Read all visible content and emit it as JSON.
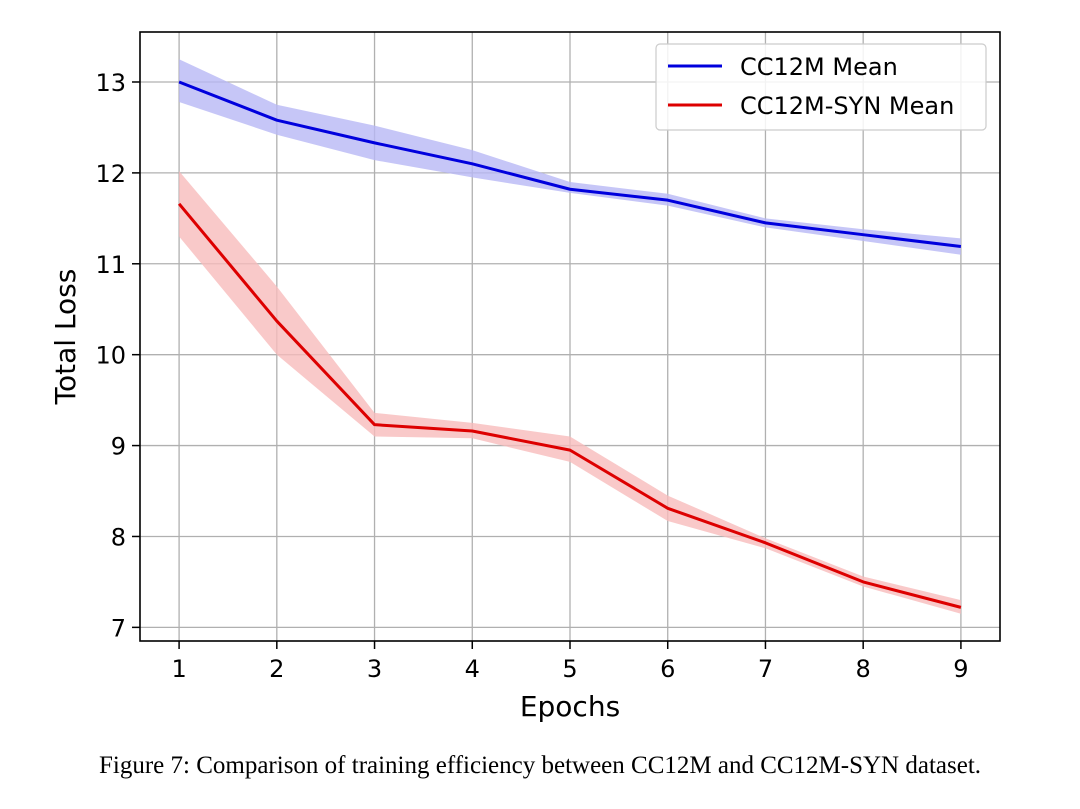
{
  "chart_data": {
    "type": "line",
    "title": "",
    "xlabel": "Epochs",
    "ylabel": "Total Loss",
    "x": [
      1,
      2,
      3,
      4,
      5,
      6,
      7,
      8,
      9
    ],
    "xlim": [
      0.6,
      9.4
    ],
    "ylim": [
      6.85,
      13.55
    ],
    "xticks": [
      1,
      2,
      3,
      4,
      5,
      6,
      7,
      8,
      9
    ],
    "yticks": [
      7,
      8,
      9,
      10,
      11,
      12,
      13
    ],
    "grid": true,
    "legend_position": "top-right",
    "series": [
      {
        "name": "CC12M Mean",
        "color": "#0000dd",
        "band_color": "#b8b8f5",
        "values": [
          13.0,
          12.58,
          12.33,
          12.1,
          11.82,
          11.7,
          11.45,
          11.32,
          11.19
        ],
        "upper": [
          13.25,
          12.75,
          12.52,
          12.25,
          11.9,
          11.77,
          11.5,
          11.38,
          11.28
        ],
        "lower": [
          12.78,
          12.42,
          12.14,
          11.95,
          11.78,
          11.64,
          11.4,
          11.25,
          11.1
        ]
      },
      {
        "name": "CC12M-SYN Mean",
        "color": "#dd0000",
        "band_color": "#f7bcbc",
        "values": [
          11.66,
          10.37,
          9.23,
          9.16,
          8.95,
          8.31,
          7.93,
          7.5,
          7.22
        ],
        "upper": [
          12.02,
          10.75,
          9.36,
          9.25,
          9.1,
          8.45,
          7.98,
          7.56,
          7.3
        ],
        "lower": [
          11.3,
          10.0,
          9.1,
          9.08,
          8.82,
          8.17,
          7.87,
          7.45,
          7.15
        ]
      }
    ]
  },
  "caption": "Figure 7: Comparison of training efficiency between CC12M and CC12M-SYN dataset."
}
